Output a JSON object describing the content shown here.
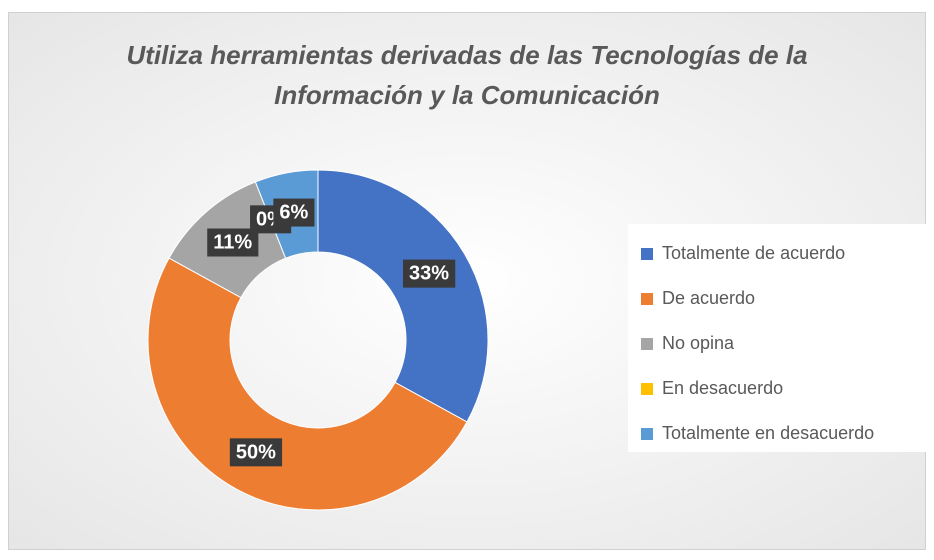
{
  "chart_data": {
    "type": "donut",
    "title": "Utiliza herramientas derivadas de las Tecnologías de la Información y la Comunicación",
    "categories": [
      "Totalmente de acuerdo",
      "De acuerdo",
      "No opina",
      "En desacuerdo",
      "Totalmente en desacuerdo"
    ],
    "values": [
      33,
      50,
      11,
      0,
      6
    ],
    "value_labels": [
      "33%",
      "50%",
      "11%",
      "0%",
      "6%"
    ],
    "colors": [
      "#4472c4",
      "#ed7d31",
      "#a5a5a5",
      "#ffc000",
      "#5b9bd5"
    ],
    "legend": "right"
  }
}
